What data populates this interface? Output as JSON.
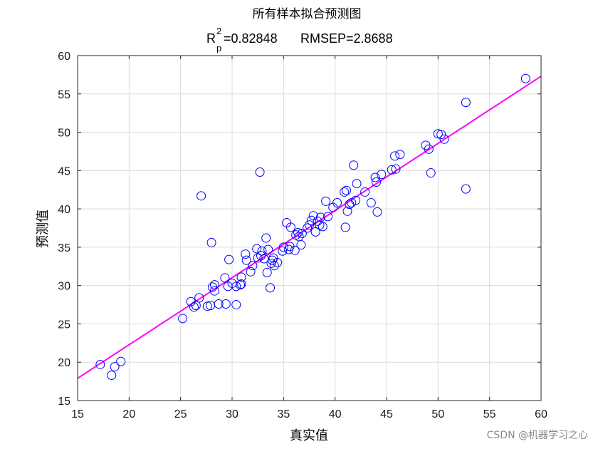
{
  "chart_data": {
    "type": "scatter",
    "title": "所有样本拟合预测图",
    "subtitle": {
      "r2_symbol": "R",
      "r2_superscript": "2",
      "r2_subscript": "p",
      "r2_value": "=0.82848",
      "rmsep": "RMSEP=2.8688"
    },
    "xlabel": "真实值",
    "ylabel": "预测值",
    "xlim": [
      15,
      60
    ],
    "ylim": [
      15,
      60
    ],
    "xticks": [
      15,
      20,
      25,
      30,
      35,
      40,
      45,
      50,
      55,
      60
    ],
    "yticks": [
      15,
      20,
      25,
      30,
      35,
      40,
      45,
      50,
      55,
      60
    ],
    "grid": true,
    "colors": {
      "points": "#0000ff",
      "fit_line": "#ff00ff",
      "grid": "#dcdcdc",
      "axes": "#262626"
    },
    "fit_line": {
      "x": [
        15,
        60
      ],
      "y": [
        17.9,
        57.3
      ]
    },
    "points": [
      [
        17.2,
        19.7
      ],
      [
        18.3,
        18.3
      ],
      [
        18.6,
        19.4
      ],
      [
        19.2,
        20.1
      ],
      [
        25.2,
        25.7
      ],
      [
        26.0,
        27.9
      ],
      [
        26.3,
        27.2
      ],
      [
        26.5,
        27.4
      ],
      [
        26.8,
        28.4
      ],
      [
        27.0,
        41.7
      ],
      [
        27.6,
        27.3
      ],
      [
        27.9,
        27.4
      ],
      [
        28.0,
        35.6
      ],
      [
        28.1,
        29.8
      ],
      [
        28.3,
        30.1
      ],
      [
        28.3,
        29.3
      ],
      [
        28.7,
        27.6
      ],
      [
        29.3,
        31.0
      ],
      [
        29.4,
        27.6
      ],
      [
        29.6,
        29.9
      ],
      [
        29.7,
        33.4
      ],
      [
        30.0,
        30.3
      ],
      [
        30.4,
        27.5
      ],
      [
        30.4,
        29.9
      ],
      [
        30.8,
        30.1
      ],
      [
        30.9,
        30.2
      ],
      [
        30.9,
        31.1
      ],
      [
        31.3,
        34.1
      ],
      [
        31.4,
        33.3
      ],
      [
        31.8,
        31.8
      ],
      [
        32.0,
        32.6
      ],
      [
        32.4,
        34.8
      ],
      [
        32.5,
        33.6
      ],
      [
        32.7,
        44.8
      ],
      [
        32.8,
        33.9
      ],
      [
        32.9,
        34.5
      ],
      [
        33.1,
        33.5
      ],
      [
        33.3,
        36.2
      ],
      [
        33.4,
        31.7
      ],
      [
        33.5,
        34.7
      ],
      [
        33.7,
        29.7
      ],
      [
        33.8,
        32.9
      ],
      [
        33.9,
        33.3
      ],
      [
        34.0,
        33.6
      ],
      [
        34.1,
        32.6
      ],
      [
        34.4,
        33.0
      ],
      [
        34.9,
        34.5
      ],
      [
        35.0,
        35.0
      ],
      [
        35.3,
        38.2
      ],
      [
        35.5,
        34.7
      ],
      [
        35.6,
        35.1
      ],
      [
        35.7,
        37.6
      ],
      [
        36.1,
        34.6
      ],
      [
        36.2,
        36.6
      ],
      [
        36.4,
        36.9
      ],
      [
        36.5,
        36.4
      ],
      [
        36.7,
        35.3
      ],
      [
        36.8,
        36.8
      ],
      [
        37.3,
        37.5
      ],
      [
        37.5,
        37.9
      ],
      [
        37.7,
        38.5
      ],
      [
        37.9,
        39.1
      ],
      [
        38.1,
        37.0
      ],
      [
        38.3,
        38.4
      ],
      [
        38.5,
        37.9
      ],
      [
        38.6,
        38.9
      ],
      [
        38.8,
        37.7
      ],
      [
        39.1,
        41.0
      ],
      [
        39.3,
        39.0
      ],
      [
        39.8,
        40.2
      ],
      [
        40.2,
        40.8
      ],
      [
        40.9,
        42.2
      ],
      [
        41.0,
        37.6
      ],
      [
        41.1,
        42.4
      ],
      [
        41.2,
        39.7
      ],
      [
        41.4,
        40.6
      ],
      [
        41.6,
        40.8
      ],
      [
        41.8,
        45.7
      ],
      [
        42.0,
        41.1
      ],
      [
        42.1,
        43.3
      ],
      [
        42.9,
        42.2
      ],
      [
        43.5,
        40.8
      ],
      [
        43.9,
        44.1
      ],
      [
        44.0,
        43.5
      ],
      [
        44.1,
        39.6
      ],
      [
        44.5,
        44.5
      ],
      [
        45.5,
        45.1
      ],
      [
        45.8,
        46.9
      ],
      [
        45.9,
        45.2
      ],
      [
        46.3,
        47.1
      ],
      [
        48.8,
        48.3
      ],
      [
        49.1,
        47.8
      ],
      [
        49.3,
        44.7
      ],
      [
        50.0,
        49.8
      ],
      [
        50.3,
        49.7
      ],
      [
        50.6,
        49.1
      ],
      [
        52.7,
        53.9
      ],
      [
        52.7,
        42.6
      ],
      [
        58.5,
        57.0
      ]
    ]
  },
  "watermark": "CSDN @机器学习之心"
}
